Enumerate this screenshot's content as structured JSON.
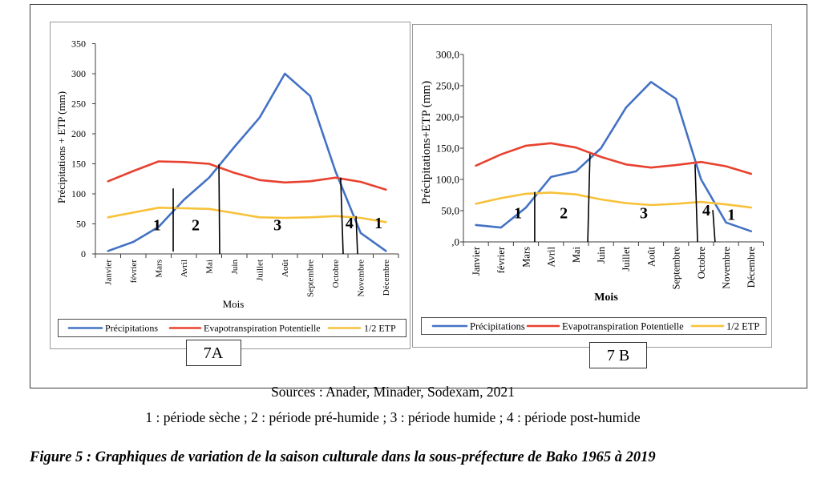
{
  "figure": {
    "sources": "Sources : Anader, Minader, Sodexam, 2021",
    "period_key": "1 : période sèche ; 2 : période pré-humide ; 3 : période humide ; 4 : période post-humide",
    "caption": "Figure 5 : Graphiques de variation de la saison culturale dans la sous-préfecture de Bako 1965 à 2019"
  },
  "chart_data": [
    {
      "type": "line",
      "panel_label": "7A",
      "title": "",
      "xlabel": "Mois",
      "ylabel": "Précipitations + ETP (mm)",
      "categories": [
        "Janvier",
        "février",
        "Mars",
        "Avril",
        "Mai",
        "Juin",
        "Juillet",
        "Août",
        "Septembre",
        "Octobre",
        "Novembre",
        "Décembre"
      ],
      "ylim": [
        0,
        350
      ],
      "yticks": [
        0,
        50,
        100,
        150,
        200,
        250,
        300,
        350
      ],
      "ytick_labels": [
        "0",
        "50",
        "100",
        "150",
        "200",
        "250",
        "300",
        "350"
      ],
      "grid": false,
      "legend_position": "bottom",
      "series": [
        {
          "name": "Précipitations",
          "color": "#4472C4",
          "values": [
            5,
            20,
            45,
            90,
            127,
            178,
            227,
            300,
            263,
            138,
            35,
            5
          ]
        },
        {
          "name": "Evapotranspiration Potentielle",
          "color": "#E8412F",
          "values": [
            121,
            138,
            154,
            153,
            150,
            135,
            123,
            119,
            121,
            127,
            120,
            107
          ]
        },
        {
          "name": "1/2 ETP",
          "color": "#F7C23A",
          "values": [
            61,
            69,
            77,
            76,
            75,
            68,
            61,
            60,
            61,
            63,
            60,
            53
          ]
        }
      ],
      "periods": [
        {
          "label": "1",
          "x": 1.94,
          "y": 49
        },
        {
          "label": "2",
          "x": 3.47,
          "y": 49
        },
        {
          "label": "3",
          "x": 6.71,
          "y": 49
        },
        {
          "label": "4",
          "x": 9.56,
          "y": 52
        },
        {
          "label": "1",
          "x": 10.71,
          "y": 52
        }
      ],
      "period_dividers": [
        {
          "x": [
            2.58,
            2.58
          ],
          "y": [
            4,
            109
          ]
        },
        {
          "x": [
            4.42,
            4.39
          ],
          "y": [
            0,
            149
          ]
        },
        {
          "x": [
            9.31,
            9.21
          ],
          "y": [
            0,
            127
          ]
        },
        {
          "x": [
            9.88,
            9.82
          ],
          "y": [
            0,
            63
          ]
        }
      ]
    },
    {
      "type": "line",
      "panel_label": "7 B",
      "title": "",
      "xlabel": "Mois",
      "ylabel": "Précipitations+ETP (mm)",
      "categories": [
        "Janvier",
        "février",
        "Mars",
        "Avril",
        "Mai",
        "Juin",
        "Juillet",
        "Août",
        "Septembre",
        "Octobre",
        "Novembre",
        "Décembre"
      ],
      "ylim": [
        0,
        300
      ],
      "yticks": [
        0,
        50,
        100,
        150,
        200,
        250,
        300
      ],
      "ytick_labels": [
        ",0",
        "50,0",
        "100,0",
        "150,0",
        "200,0",
        "250,0",
        "300,0"
      ],
      "grid": false,
      "legend_position": "bottom",
      "series": [
        {
          "name": "Précipitations",
          "color": "#4472C4",
          "values": [
            27,
            23,
            55,
            104,
            113,
            150,
            215,
            256,
            229,
            100,
            31,
            17
          ]
        },
        {
          "name": "Evapotranspiration Potentielle",
          "color": "#E8412F",
          "values": [
            122,
            140,
            154,
            158,
            151,
            136,
            124,
            119,
            123,
            128,
            121,
            109
          ]
        },
        {
          "name": "1/2 ETP",
          "color": "#F7C23A",
          "values": [
            61,
            70,
            77,
            79,
            76,
            68,
            62,
            59,
            61,
            64,
            60,
            55
          ]
        }
      ],
      "periods": [
        {
          "label": "1",
          "x": 1.68,
          "y": 47
        },
        {
          "label": "2",
          "x": 3.51,
          "y": 47
        },
        {
          "label": "3",
          "x": 6.71,
          "y": 47
        },
        {
          "label": "4",
          "x": 9.21,
          "y": 51
        },
        {
          "label": "1",
          "x": 10.21,
          "y": 44
        }
      ],
      "period_dividers": [
        {
          "x": [
            2.35,
            2.35
          ],
          "y": [
            0,
            80
          ]
        },
        {
          "x": [
            4.47,
            4.56
          ],
          "y": [
            0,
            141
          ]
        },
        {
          "x": [
            8.86,
            8.76
          ],
          "y": [
            0,
            124
          ]
        },
        {
          "x": [
            9.56,
            9.47
          ],
          "y": [
            0,
            51
          ]
        }
      ]
    }
  ]
}
